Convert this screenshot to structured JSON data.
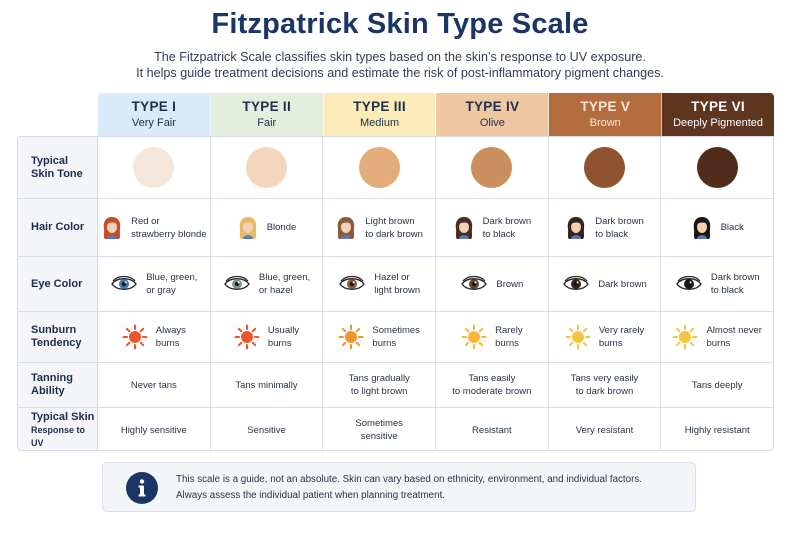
{
  "title": "Fitzpatrick Skin Type Scale",
  "subtitle": {
    "line1": "The Fitzpatrick Scale classifies skin types based on the skin’s response to UV exposure.",
    "line2": "It helps guide treatment decisions and estimate the risk of post-inflammatory pigment changes."
  },
  "types": [
    {
      "type": "TYPE I",
      "name": "Very Fair",
      "header_bg": "#d9ebf8",
      "header_fg": "#1f2d4a",
      "skin": "#f6e7dc",
      "hair": "#c4502a",
      "eye": "#3f78b5",
      "sun": "#e8572e"
    },
    {
      "type": "TYPE II",
      "name": "Fair",
      "header_bg": "#e3eedd",
      "header_fg": "#1f2d4a",
      "skin": "#f3d6bd",
      "hair": "#e7bb63",
      "eye": "#7a9a8c",
      "sun": "#e8572e"
    },
    {
      "type": "TYPE III",
      "name": "Medium",
      "header_bg": "#fcebb8",
      "header_fg": "#1f2d4a",
      "skin": "#e3ad7b",
      "hair": "#8a5a3a",
      "eye": "#8a5a3a",
      "sun": "#f2942c"
    },
    {
      "type": "TYPE IV",
      "name": "Olive",
      "header_bg": "#efc8a2",
      "header_fg": "#1f2d4a",
      "skin": "#c98f5f",
      "hair": "#4d2e1e",
      "eye": "#6b4226",
      "sun": "#f6b83a"
    },
    {
      "type": "TYPE V",
      "name": "Brown",
      "header_bg": "#b26c3e",
      "header_fg": "#f9e7d8",
      "skin": "#8f5330",
      "hair": "#3b2218",
      "eye": "#3b2218",
      "sun": "#f6c540"
    },
    {
      "type": "TYPE VI",
      "name": "Deeply Pigmented",
      "header_bg": "#5e3620",
      "header_fg": "#ffffff",
      "skin": "#4f2d1c",
      "hair": "#1e1410",
      "eye": "#1e1410",
      "sun": "#f6c540"
    }
  ],
  "row_labels": {
    "skin_tone": [
      "Typical",
      "Skin Tone"
    ],
    "hair": [
      "Hair Color"
    ],
    "eye": [
      "Eye Color"
    ],
    "sunburn": [
      "Sunburn",
      "Tendency"
    ],
    "tanning": [
      "Tanning",
      "Ability"
    ],
    "response": [
      "Typical Skin",
      "Response to UV"
    ]
  },
  "hair_text": [
    [
      "Red or",
      "strawberry blonde"
    ],
    [
      "Blonde"
    ],
    [
      "Light brown",
      "to dark brown"
    ],
    [
      "Dark brown",
      "to black"
    ],
    [
      "Dark brown",
      "to black"
    ],
    [
      "Black"
    ]
  ],
  "eye_text": [
    [
      "Blue, green,",
      "or gray"
    ],
    [
      "Blue, green,",
      "or hazel"
    ],
    [
      "Hazel or",
      "light brown"
    ],
    [
      "Brown"
    ],
    [
      "Dark brown"
    ],
    [
      "Dark brown",
      "to black"
    ]
  ],
  "sunburn_text": [
    [
      "Always",
      "burns"
    ],
    [
      "Usually",
      "burns"
    ],
    [
      "Sometimes",
      "burns"
    ],
    [
      "Rarely",
      "burns"
    ],
    [
      "Very rarely",
      "burns"
    ],
    [
      "Almost never",
      "burns"
    ]
  ],
  "tanning_text": [
    [
      "Never tans"
    ],
    [
      "Tans minimally"
    ],
    [
      "Tans gradually",
      "to light brown"
    ],
    [
      "Tans easily",
      "to moderate brown"
    ],
    [
      "Tans very easily",
      "to dark brown"
    ],
    [
      "Tans deeply"
    ]
  ],
  "response_text": [
    [
      "Highly sensitive"
    ],
    [
      "Sensitive"
    ],
    [
      "Sometimes",
      "sensitive"
    ],
    [
      "Resistant"
    ],
    [
      "Very resistant"
    ],
    [
      "Highly resistant"
    ]
  ],
  "note": {
    "line1": "This scale is a guide, not an absolute. Skin can vary based on ethnicity, environment, and individual factors.",
    "line2": "Always assess the individual patient when planning treatment.",
    "icon": "info-icon"
  },
  "colors": {
    "title": "#1b3564",
    "border": "#d5dbe6",
    "label_bg": "#f3f5f9"
  }
}
